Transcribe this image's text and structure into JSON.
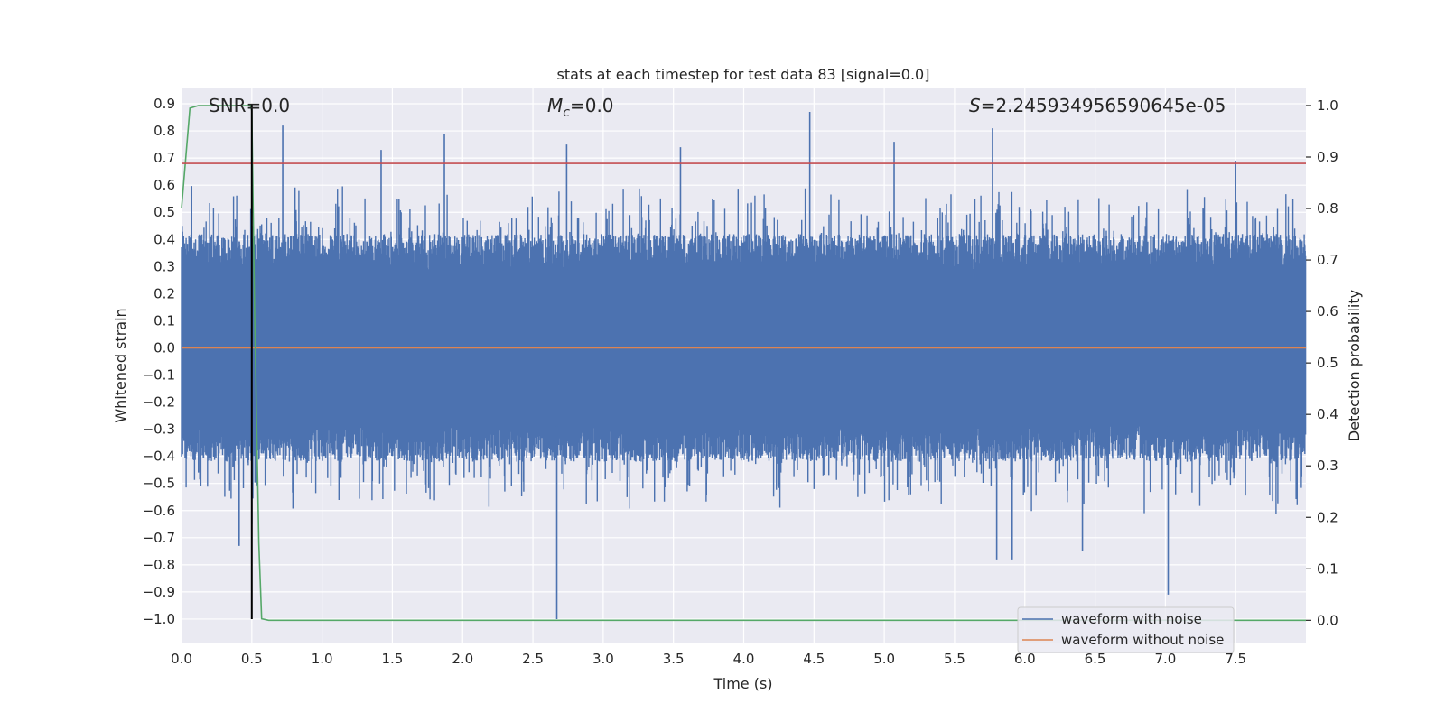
{
  "chart_data": {
    "type": "line",
    "title": "stats at each timestep for test data 83 [signal=0.0]",
    "xlabel": "Time (s)",
    "ylabel": "Whitened strain",
    "ylabel_right": "Detection probability",
    "xlim": [
      0.0,
      8.0
    ],
    "ylim": [
      -1.09,
      0.96
    ],
    "ylim_right": [
      -0.045,
      1.035
    ],
    "x_ticks": [
      0.0,
      0.5,
      1.0,
      1.5,
      2.0,
      2.5,
      3.0,
      3.5,
      4.0,
      4.5,
      5.0,
      5.5,
      6.0,
      6.5,
      7.0,
      7.5
    ],
    "y_ticks": [
      0.9,
      0.8,
      0.7,
      0.6,
      0.5,
      0.4,
      0.3,
      0.2,
      0.1,
      0.0,
      -0.1,
      -0.2,
      -0.3,
      -0.4,
      -0.5,
      -0.6,
      -0.7,
      -0.8,
      -0.9,
      -1.0
    ],
    "y_tick_labels": [
      "0.9",
      "0.8",
      "0.7",
      "0.6",
      "0.5",
      "0.4",
      "0.3",
      "0.2",
      "0.1",
      "0.0",
      "−0.1",
      "−0.2",
      "−0.3",
      "−0.4",
      "−0.5",
      "−0.6",
      "−0.7",
      "−0.8",
      "−0.9",
      "−1.0"
    ],
    "y_right_ticks": [
      1.0,
      0.9,
      0.8,
      0.7,
      0.6,
      0.5,
      0.4,
      0.3,
      0.2,
      0.1,
      0.0
    ],
    "grid": true,
    "legend_position": "bottom-right",
    "annotations": {
      "snr": "SNR=0.0",
      "mc_symbol": "M",
      "mc_sub": "c",
      "mc_value": "=0.0",
      "s_symbol": "S",
      "s_value": "=2.245934956590645e-05"
    },
    "series": [
      {
        "name": "waveform with noise",
        "color": "#4c72b0",
        "note": "dense whitened-strain noise; band roughly ±0.3 with spikes to ±0.9",
        "spikes": [
          {
            "x": 0.72,
            "y": 0.82
          },
          {
            "x": 1.42,
            "y": 0.73
          },
          {
            "x": 1.87,
            "y": 0.79
          },
          {
            "x": 2.74,
            "y": 0.75
          },
          {
            "x": 3.55,
            "y": 0.74
          },
          {
            "x": 4.47,
            "y": 0.87
          },
          {
            "x": 5.07,
            "y": 0.76
          },
          {
            "x": 5.77,
            "y": 0.81
          },
          {
            "x": 7.5,
            "y": 0.69
          },
          {
            "x": 0.41,
            "y": -0.73
          },
          {
            "x": 0.5,
            "y": -0.65
          },
          {
            "x": 2.67,
            "y": -1.0
          },
          {
            "x": 5.8,
            "y": -0.78
          },
          {
            "x": 5.91,
            "y": -0.78
          },
          {
            "x": 6.41,
            "y": -0.75
          },
          {
            "x": 7.02,
            "y": -0.91
          }
        ]
      },
      {
        "name": "waveform without noise",
        "color": "#dd8452",
        "x": [
          0.0,
          8.0
        ],
        "y": [
          0.0,
          0.0
        ]
      },
      {
        "color": "#55a868",
        "axis": "right",
        "x": [
          0.0,
          0.06,
          0.12,
          0.2,
          0.3,
          0.4,
          0.49,
          0.5,
          0.52,
          0.55,
          0.57,
          0.62,
          1.0,
          2.0,
          3.0,
          4.0,
          5.0,
          6.0,
          7.0,
          8.0
        ],
        "y": [
          0.8,
          0.995,
          1.0,
          1.0,
          1.0,
          1.0,
          1.0,
          0.99,
          0.6,
          0.15,
          0.003,
          0.0,
          0.0,
          0.0,
          0.0,
          0.0,
          0.0,
          0.0,
          0.0,
          0.0
        ]
      },
      {
        "color": "#c44e52",
        "x": [
          0.0,
          8.0
        ],
        "y": [
          0.68,
          0.68
        ]
      },
      {
        "color": "#000000",
        "x": [
          0.5,
          0.5
        ],
        "y": [
          -1.0,
          0.9
        ]
      }
    ]
  }
}
